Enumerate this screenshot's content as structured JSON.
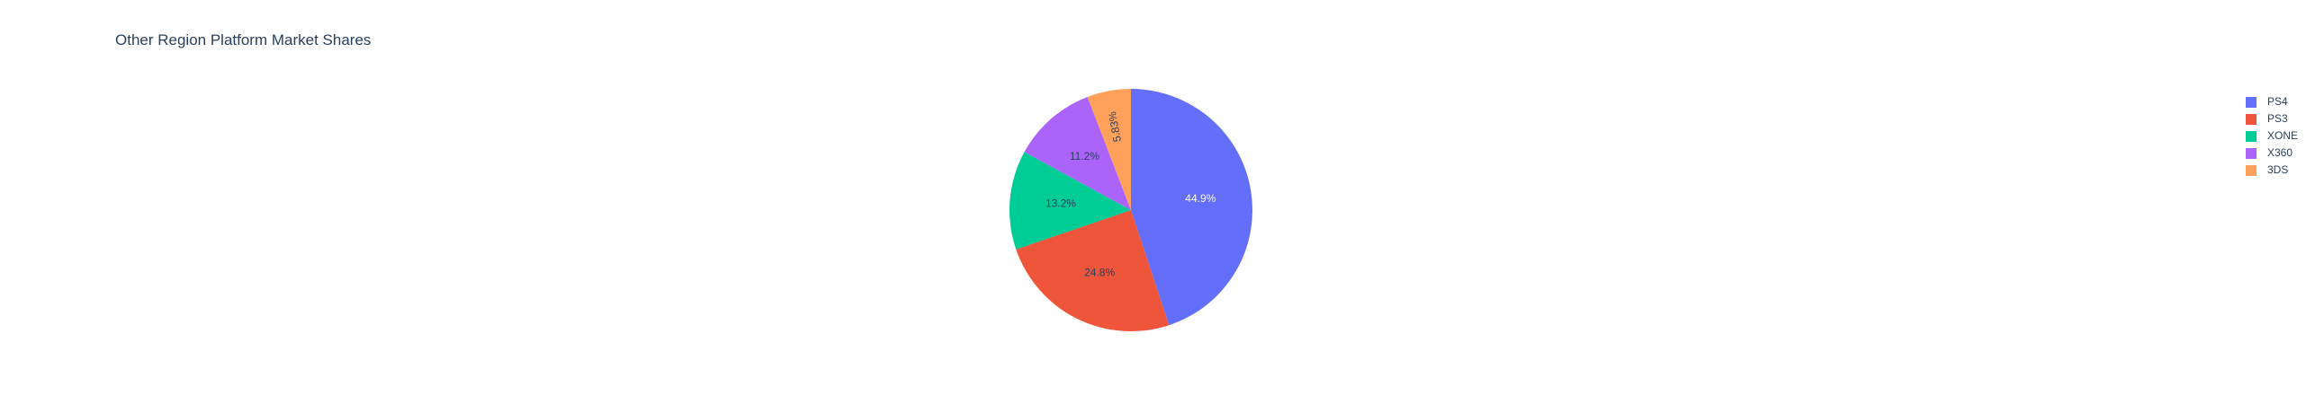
{
  "chart_data": {
    "type": "pie",
    "title": "Other Region Platform Market Shares",
    "categories": [
      "PS4",
      "PS3",
      "XONE",
      "X360",
      "3DS"
    ],
    "values": [
      44.9,
      24.8,
      13.2,
      11.2,
      5.83
    ],
    "labels": [
      "44.9%",
      "24.8%",
      "13.2%",
      "11.2%",
      "5.83%"
    ],
    "colors": [
      "#636efa",
      "#EF553B",
      "#00cc96",
      "#ab63fa",
      "#FFA15A"
    ],
    "label_colors": [
      "#ffffff",
      "#2a3f5f",
      "#2a3f5f",
      "#2a3f5f",
      "#2a3f5f"
    ],
    "direction": "clockwise",
    "legend_position": "top-right"
  }
}
